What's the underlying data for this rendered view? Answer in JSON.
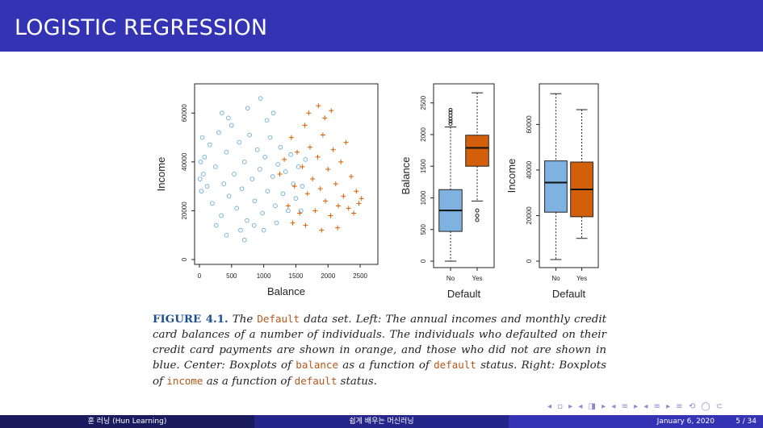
{
  "slide": {
    "title": "LOGISTIC REGRESSION"
  },
  "colors": {
    "title_bar": "#3333b3",
    "no_color": "#6baed6",
    "yes_color": "#d95f02",
    "box_no": "#7fb2e0",
    "box_yes": "#d35f0a"
  },
  "chart_data": [
    {
      "type": "scatter",
      "xlabel": "Balance",
      "ylabel": "Income",
      "xlim": [
        0,
        2700
      ],
      "ylim": [
        0,
        70000
      ],
      "xticks": [
        "0",
        "500",
        "1000",
        "1500",
        "2000",
        "2500"
      ],
      "yticks": [
        "0",
        "20000",
        "40000",
        "60000"
      ],
      "series": [
        {
          "marker": "circle",
          "color": "#6baed6",
          "points": [
            [
              80,
              42000
            ],
            [
              120,
              30000
            ],
            [
              160,
              47000
            ],
            [
              200,
              23000
            ],
            [
              250,
              38000
            ],
            [
              300,
              52000
            ],
            [
              340,
              18000
            ],
            [
              380,
              31000
            ],
            [
              420,
              44000
            ],
            [
              460,
              26000
            ],
            [
              500,
              55000
            ],
            [
              540,
              35000
            ],
            [
              580,
              21000
            ],
            [
              620,
              48000
            ],
            [
              660,
              29000
            ],
            [
              700,
              40000
            ],
            [
              740,
              16000
            ],
            [
              780,
              51000
            ],
            [
              820,
              33000
            ],
            [
              860,
              24000
            ],
            [
              900,
              45000
            ],
            [
              940,
              37000
            ],
            [
              980,
              19000
            ],
            [
              1020,
              42000
            ],
            [
              1060,
              28000
            ],
            [
              1100,
              50000
            ],
            [
              1140,
              34000
            ],
            [
              1180,
              22000
            ],
            [
              1220,
              39000
            ],
            [
              1260,
              46000
            ],
            [
              1300,
              27000
            ],
            [
              1340,
              36000
            ],
            [
              1380,
              20000
            ],
            [
              1420,
              43000
            ],
            [
              1460,
              31000
            ],
            [
              1500,
              25000
            ],
            [
              1540,
              38000
            ],
            [
              60,
              35000
            ],
            [
              30,
              28000
            ],
            [
              20,
              40000
            ],
            [
              10,
              33000
            ],
            [
              45,
              50000
            ],
            [
              350,
              60000
            ],
            [
              450,
              58000
            ],
            [
              750,
              62000
            ],
            [
              950,
              66000
            ],
            [
              1050,
              57000
            ],
            [
              1150,
              60000
            ],
            [
              850,
              14000
            ],
            [
              700,
              8000
            ],
            [
              1000,
              12000
            ],
            [
              1200,
              15000
            ],
            [
              640,
              12000
            ],
            [
              420,
              10000
            ],
            [
              260,
              14000
            ],
            [
              1600,
              30000
            ],
            [
              1580,
              20000
            ],
            [
              1650,
              41000
            ]
          ]
        },
        {
          "marker": "plus",
          "color": "#d95f02",
          "points": [
            [
              1250,
              35000
            ],
            [
              1320,
              41000
            ],
            [
              1380,
              22000
            ],
            [
              1430,
              50000
            ],
            [
              1480,
              30000
            ],
            [
              1520,
              44000
            ],
            [
              1560,
              19000
            ],
            [
              1600,
              38000
            ],
            [
              1640,
              55000
            ],
            [
              1680,
              27000
            ],
            [
              1720,
              46000
            ],
            [
              1760,
              33000
            ],
            [
              1800,
              20000
            ],
            [
              1840,
              42000
            ],
            [
              1880,
              29000
            ],
            [
              1920,
              51000
            ],
            [
              1960,
              24000
            ],
            [
              2000,
              37000
            ],
            [
              2040,
              18000
            ],
            [
              2080,
              45000
            ],
            [
              2120,
              31000
            ],
            [
              2160,
              22000
            ],
            [
              2200,
              40000
            ],
            [
              2240,
              26000
            ],
            [
              2280,
              48000
            ],
            [
              2320,
              21000
            ],
            [
              2360,
              34000
            ],
            [
              2400,
              19000
            ],
            [
              2440,
              28000
            ],
            [
              2480,
              23000
            ],
            [
              2520,
              25000
            ],
            [
              1700,
              60000
            ],
            [
              1850,
              63000
            ],
            [
              1950,
              58000
            ],
            [
              2050,
              61000
            ],
            [
              1650,
              14000
            ],
            [
              1900,
              12000
            ],
            [
              2150,
              13000
            ],
            [
              1450,
              15000
            ]
          ]
        }
      ]
    },
    {
      "type": "boxplot",
      "xlabel": "Default",
      "ylabel": "Balance",
      "ylim": [
        0,
        2700
      ],
      "yticks": [
        "0",
        "500",
        "1000",
        "1500",
        "2000",
        "2500"
      ],
      "categories": [
        "No",
        "Yes"
      ],
      "boxes": [
        {
          "min": 0,
          "q1": 470,
          "median": 800,
          "q3": 1130,
          "max": 2120,
          "outliers": [
            2170,
            2210,
            2250,
            2300,
            2350,
            2390
          ]
        },
        {
          "min": 950,
          "q1": 1500,
          "median": 1790,
          "q3": 1990,
          "max": 2660,
          "outliers": [
            650,
            720,
            800
          ]
        }
      ]
    },
    {
      "type": "boxplot",
      "xlabel": "Default",
      "ylabel": "Income",
      "ylim": [
        0,
        75000
      ],
      "yticks": [
        "0",
        "20000",
        "40000",
        "60000"
      ],
      "categories": [
        "No",
        "Yes"
      ],
      "boxes": [
        {
          "min": 700,
          "q1": 21500,
          "median": 34500,
          "q3": 44000,
          "max": 73500,
          "outliers": []
        },
        {
          "min": 10000,
          "q1": 19500,
          "median": 31500,
          "q3": 43500,
          "max": 66500,
          "outliers": []
        }
      ]
    }
  ],
  "caption": {
    "figure_label": "FIGURE 4.1.",
    "p1": "The",
    "c1": "Default",
    "p2": "data set. Left: The annual incomes and monthly credit card balances of a number of individuals. The individuals who defaulted on their credit card payments are shown in orange, and those who did not are shown in blue. Center: Boxplots of",
    "c2": "balance",
    "p3": "as a function of",
    "c3": "default",
    "p4": "status. Right: Boxplots of",
    "c4": "income",
    "p5": "as a function of",
    "c5": "default",
    "p6": "status."
  },
  "footer": {
    "left": "훈 러닝 (Hun Learning)",
    "center": "쉽게 배우는 머신러닝",
    "date": "January 6, 2020",
    "page": "5 / 34"
  },
  "nav_symbols": "◂ ▫ ▸ ◂ ◨ ▸ ◂ ≡ ▸ ◂ ≡ ▸ ≡ ⟲ ◯ ⊂"
}
